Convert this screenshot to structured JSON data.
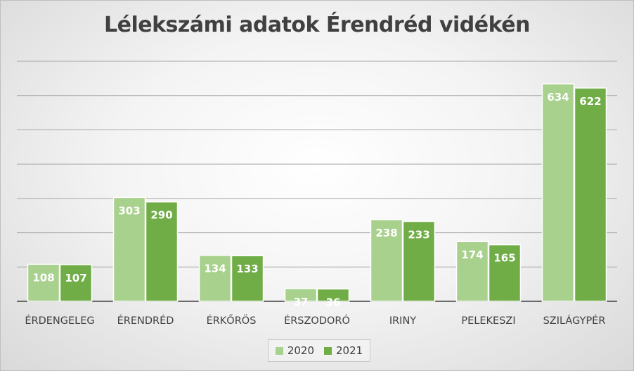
{
  "chart_data": {
    "type": "bar",
    "title": "Lélekszámi adatok Érendréd vidékén",
    "categories": [
      "ÉRDENGELEG",
      "ÉRENDRÉD",
      "ÉRKŐRÖS",
      "ÉRSZODORÓ",
      "IRINY",
      "PELEKESZI",
      "SZILÁGYPÉR"
    ],
    "series": [
      {
        "name": "2020",
        "color": "#a9d18e",
        "values": [
          108,
          303,
          134,
          37,
          238,
          174,
          634
        ]
      },
      {
        "name": "2021",
        "color": "#70ad47",
        "values": [
          107,
          290,
          133,
          36,
          233,
          165,
          622
        ]
      }
    ],
    "ylim": [
      0,
      700
    ],
    "grid": true,
    "data_labels": true,
    "legend": "bottom"
  }
}
